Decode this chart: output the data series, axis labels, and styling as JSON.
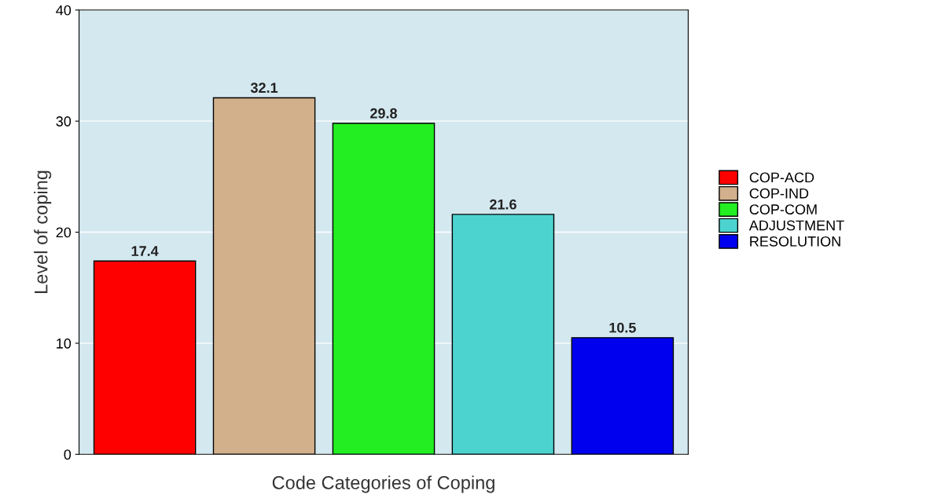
{
  "chart_data": {
    "type": "bar",
    "xlabel": "Code Categories of Coping",
    "ylabel": "Level of coping",
    "categories": [
      null,
      null,
      null,
      null,
      null
    ],
    "series": [
      {
        "name": "COP-ACD",
        "color": "#ff0000",
        "values": [
          17.4,
          null,
          null,
          null,
          null
        ]
      },
      {
        "name": "COP-IND",
        "color": "#d2b08c",
        "values": [
          null,
          32.1,
          null,
          null,
          null
        ]
      },
      {
        "name": "COP-COM",
        "color": "#22ee22",
        "values": [
          null,
          null,
          29.8,
          null,
          null
        ]
      },
      {
        "name": "ADJUSTMENT",
        "color": "#4cd3d0",
        "values": [
          null,
          null,
          null,
          21.6,
          null
        ]
      },
      {
        "name": "RESOLUTION",
        "color": "#0000ee",
        "values": [
          null,
          null,
          null,
          null,
          10.5
        ]
      }
    ],
    "ylim": [
      0,
      40
    ],
    "yticks": [
      0,
      10,
      20,
      30,
      40
    ],
    "grid": "y",
    "legend": "right",
    "data_labels": true
  }
}
